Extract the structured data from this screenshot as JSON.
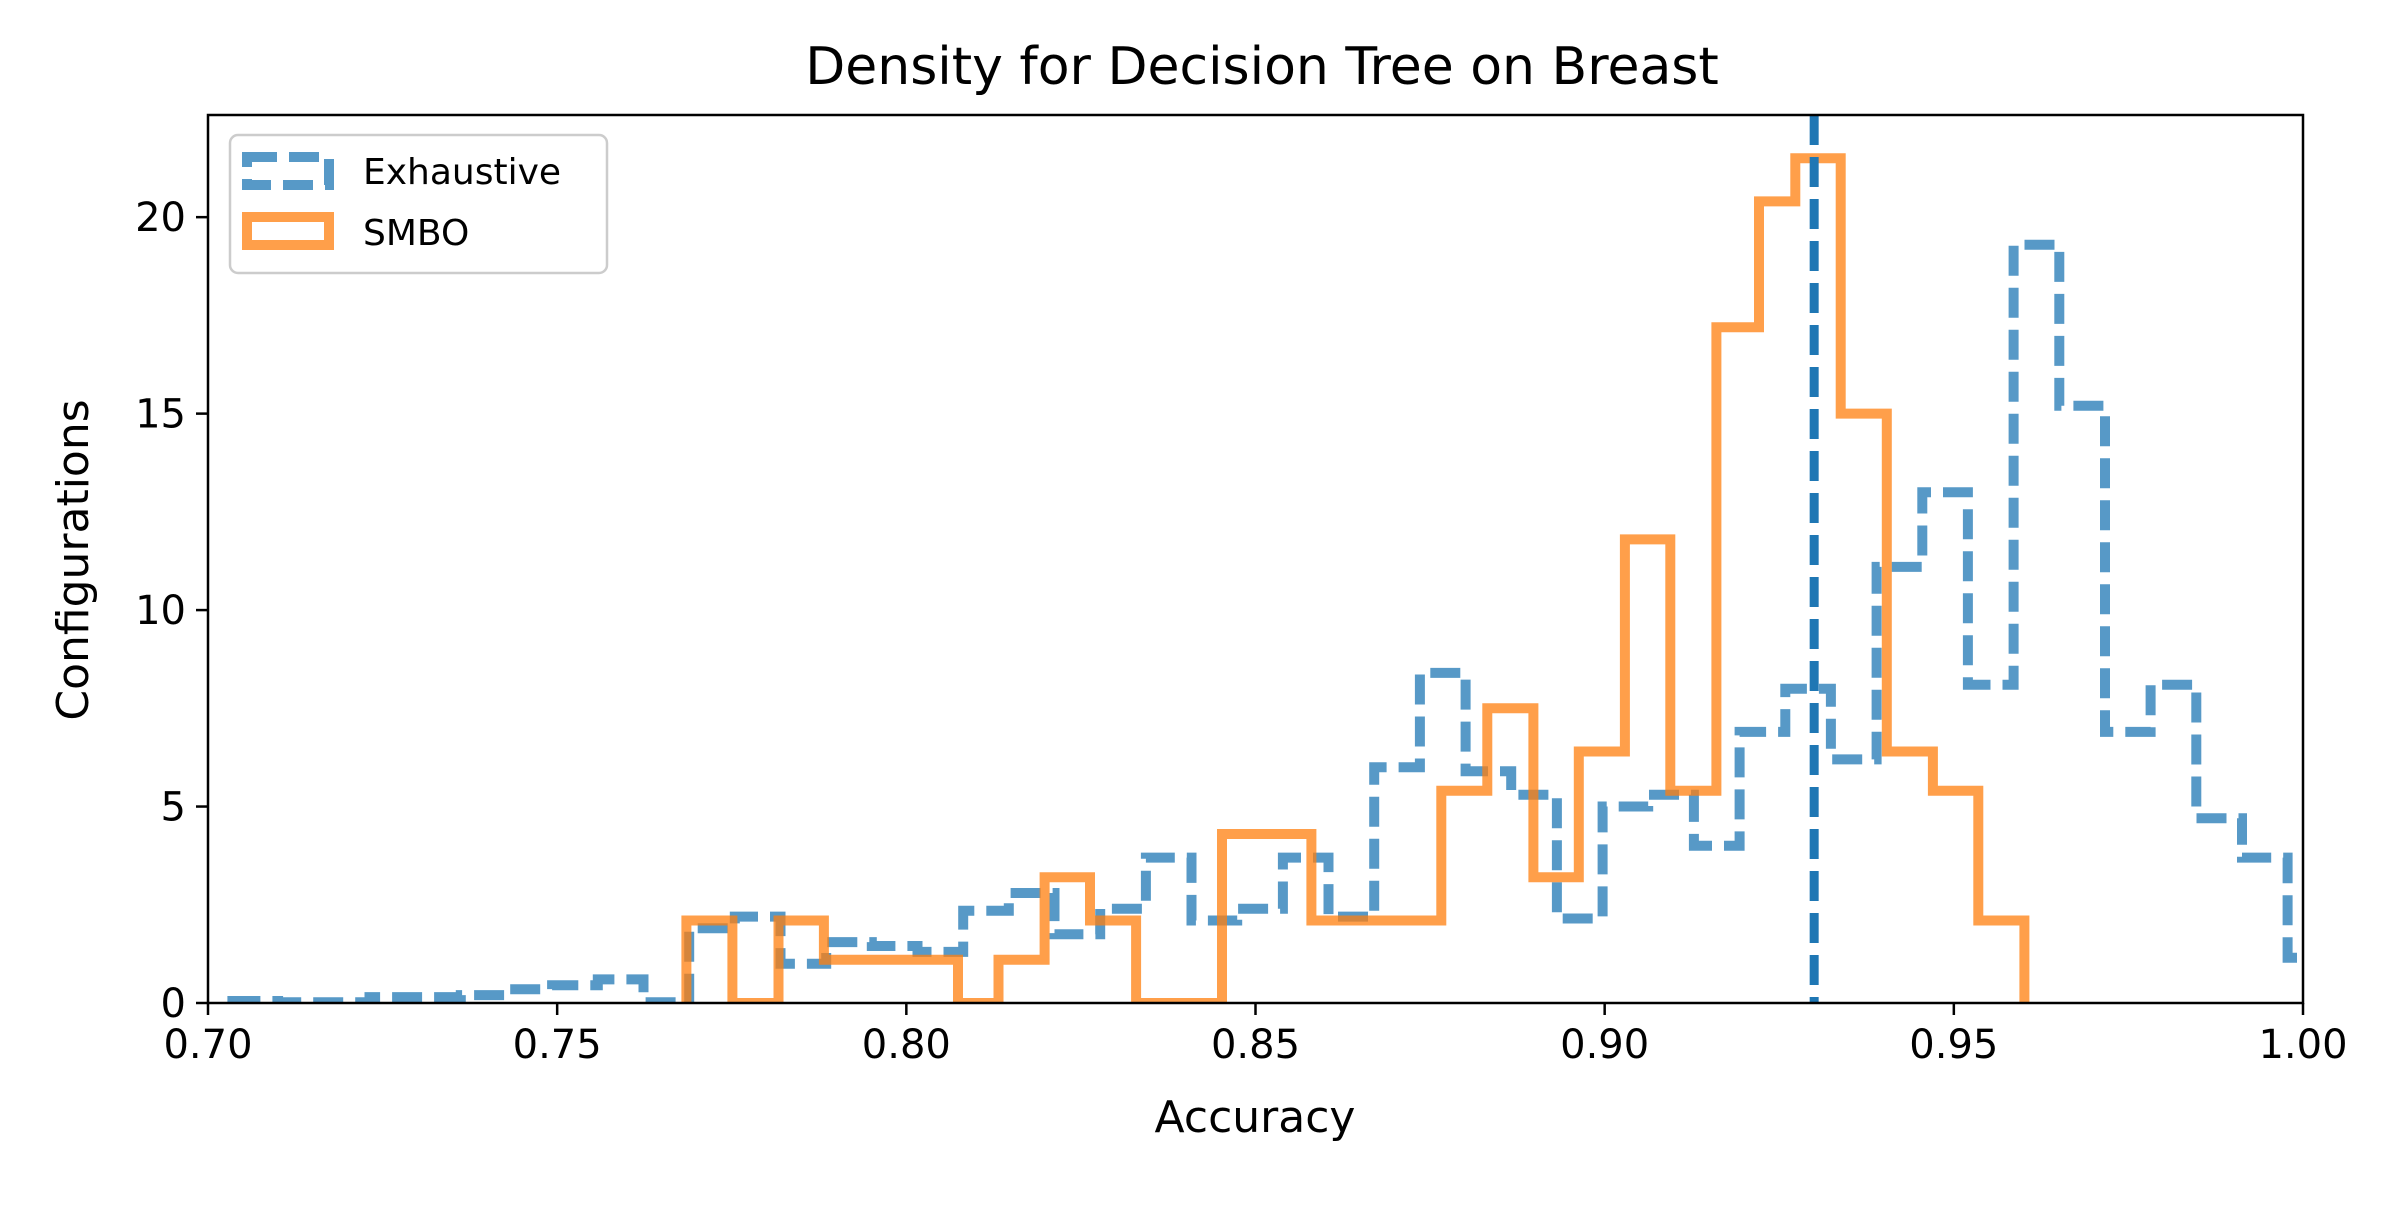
{
  "chart_data": {
    "type": "step-histogram",
    "title": "Density for Decision Tree on Breast",
    "xlabel": "Accuracy",
    "ylabel": "Configurations",
    "xlim": [
      0.7,
      1.0
    ],
    "ylim": [
      0,
      22.6
    ],
    "xticks": [
      0.7,
      0.75,
      0.8,
      0.85,
      0.9,
      0.95,
      1.0
    ],
    "xtick_labels": [
      "0.70",
      "0.75",
      "0.80",
      "0.85",
      "0.90",
      "0.95",
      "1.00"
    ],
    "yticks": [
      0,
      5,
      10,
      15,
      20
    ],
    "ytick_labels": [
      "0",
      "5",
      "10",
      "15",
      "20"
    ],
    "legend_position": "upper-left",
    "grid": false,
    "vline": {
      "x": 0.93,
      "color": "#1f77b4",
      "style": "dashed"
    },
    "series": [
      {
        "name": "Exhaustive",
        "color": "#1f77b4",
        "style": "dashed",
        "bin_width": 0.00654,
        "x_start": 0.7035,
        "values": [
          0.05,
          0.02,
          0.02,
          0.15,
          0.15,
          0.2,
          0.35,
          0.45,
          0.6,
          0.02,
          1.9,
          2.2,
          1.0,
          1.55,
          1.45,
          1.3,
          2.35,
          2.8,
          1.75,
          2.4,
          3.7,
          2.1,
          2.4,
          3.7,
          2.2,
          6.0,
          8.4,
          5.9,
          5.3,
          2.15,
          5.0,
          5.3,
          4.0,
          6.9,
          8.0,
          6.2,
          11.1,
          13.0,
          8.1,
          19.3,
          15.2,
          6.9,
          8.1,
          4.7,
          3.7,
          1.15,
          0.2
        ]
      },
      {
        "name": "SMBO",
        "color": "#ff7f0e",
        "style": "solid",
        "edges": [
          0.7685,
          0.7751,
          0.7817,
          0.7882,
          0.7948,
          0.8013,
          0.8074,
          0.8132,
          0.8198,
          0.8263,
          0.8329,
          0.8394,
          0.8452,
          0.858,
          0.8646,
          0.8704,
          0.8766,
          0.8832,
          0.8898,
          0.8963,
          0.9029,
          0.9094,
          0.916,
          0.9221,
          0.9273,
          0.9338,
          0.9404,
          0.947,
          0.9535,
          0.9601
        ],
        "values": [
          2.1,
          0.0,
          2.1,
          1.1,
          1.1,
          1.1,
          0.0,
          1.1,
          3.2,
          2.1,
          0.0,
          0.0,
          4.3,
          2.1,
          2.1,
          2.1,
          5.4,
          7.5,
          3.2,
          6.4,
          11.8,
          5.4,
          17.2,
          20.4,
          21.5,
          15.0,
          6.4,
          5.4,
          2.1
        ]
      }
    ]
  }
}
